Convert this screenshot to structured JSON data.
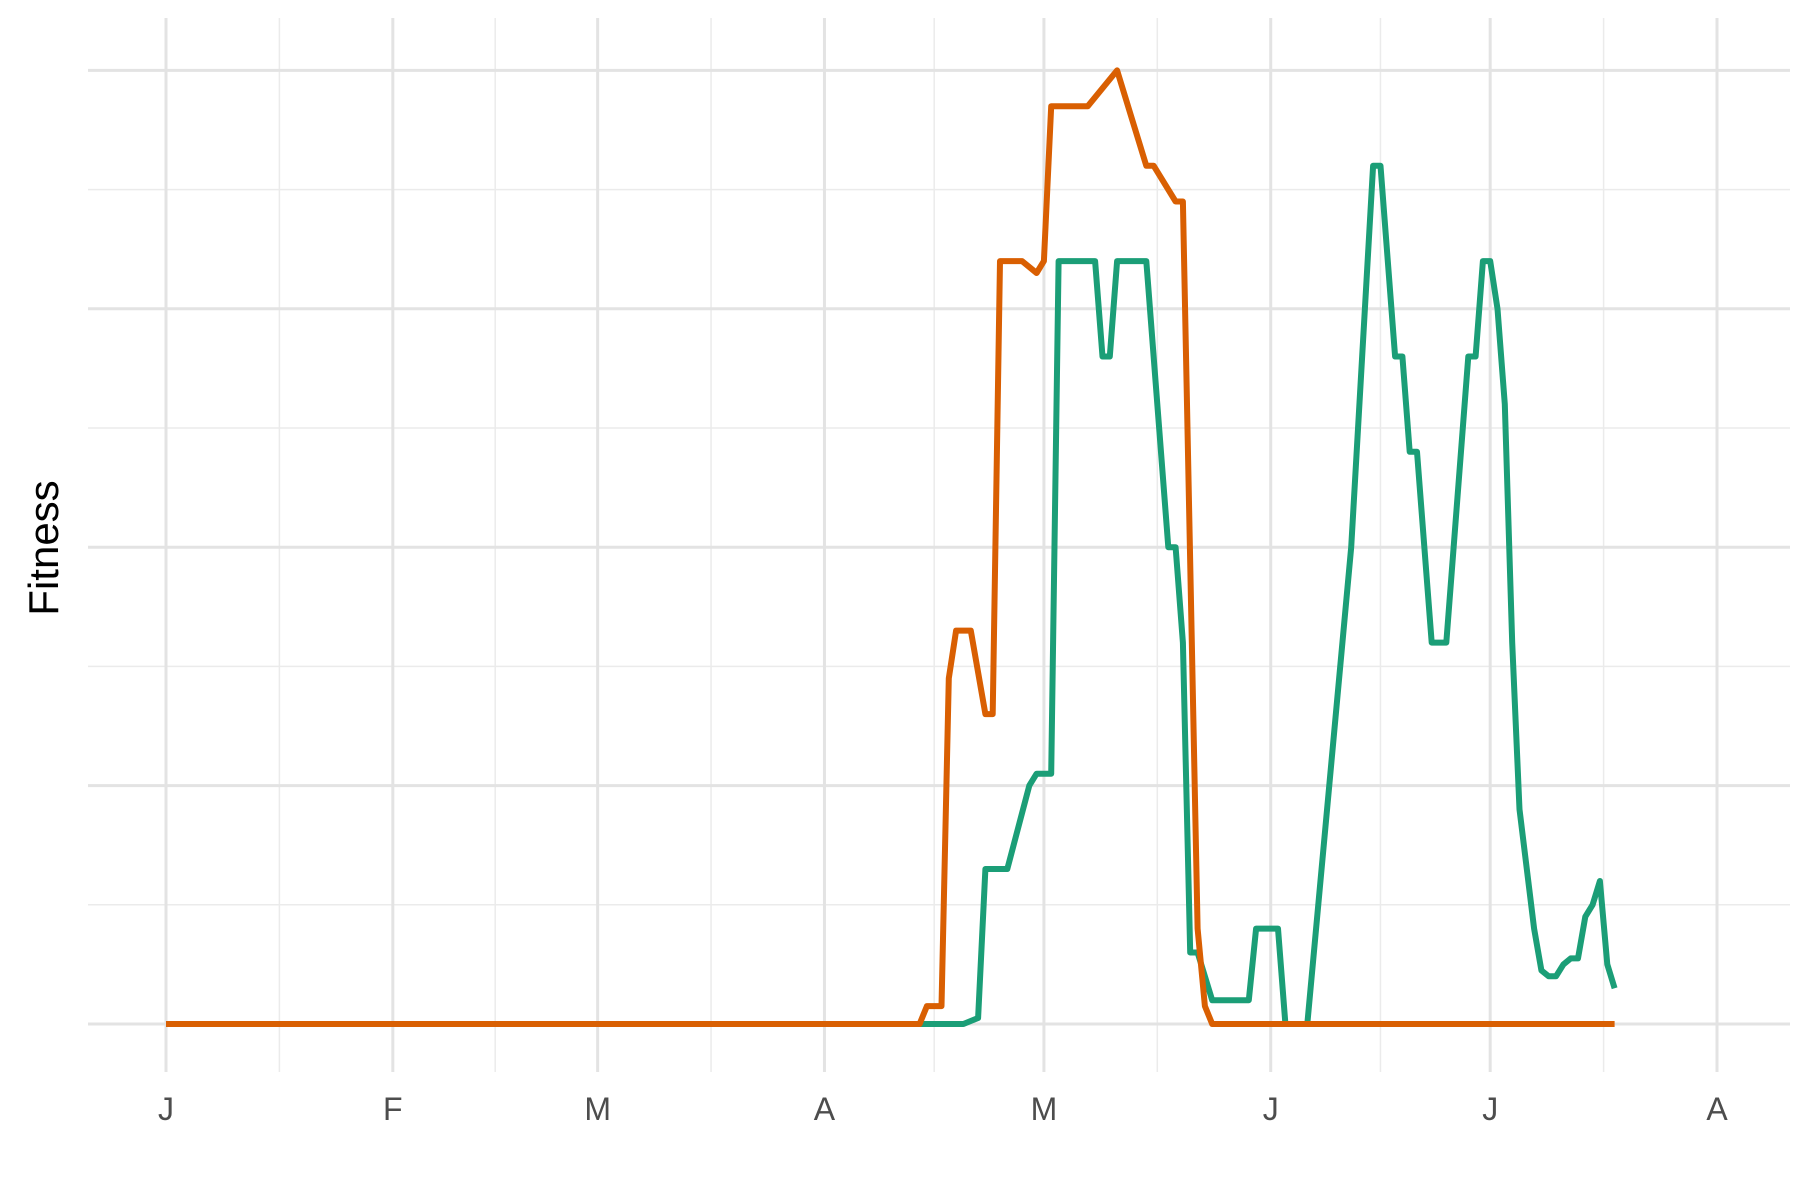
{
  "chart_data": {
    "type": "line",
    "title": "",
    "xlabel": "",
    "ylabel": "Fitness",
    "x_ticks": [
      {
        "label": "J",
        "day": 1
      },
      {
        "label": "F",
        "day": 32
      },
      {
        "label": "M",
        "day": 60
      },
      {
        "label": "A",
        "day": 91
      },
      {
        "label": "M",
        "day": 121
      },
      {
        "label": "J",
        "day": 152
      },
      {
        "label": "J",
        "day": 182
      },
      {
        "label": "A",
        "day": 213
      }
    ],
    "x_minor_ticks": [
      16.5,
      46,
      75.5,
      106,
      136.5,
      167,
      197.5
    ],
    "xlim": [
      -10,
      220
    ],
    "ylim": [
      -0.2,
      8.6
    ],
    "y_major_grid": [
      0,
      2,
      4,
      6,
      8
    ],
    "y_minor_grid": [
      1,
      3,
      5,
      7
    ],
    "grid": true,
    "legend": "none",
    "series": [
      {
        "color": "#1b9e77",
        "points": [
          [
            1,
            0
          ],
          [
            105,
            0
          ],
          [
            110,
            0
          ],
          [
            112,
            0.05
          ],
          [
            113,
            1.3
          ],
          [
            116,
            1.3
          ],
          [
            119,
            2.0
          ],
          [
            120,
            2.1
          ],
          [
            122,
            2.1
          ],
          [
            123,
            6.4
          ],
          [
            128,
            6.4
          ],
          [
            129,
            5.6
          ],
          [
            130,
            5.6
          ],
          [
            131,
            6.4
          ],
          [
            135,
            6.4
          ],
          [
            138,
            4.0
          ],
          [
            139,
            4.0
          ],
          [
            140,
            3.2
          ],
          [
            141,
            0.6
          ],
          [
            142,
            0.6
          ],
          [
            144,
            0.2
          ],
          [
            149,
            0.2
          ],
          [
            150,
            0.8
          ],
          [
            153,
            0.8
          ],
          [
            154,
            0
          ],
          [
            157,
            0
          ],
          [
            163,
            4.0
          ],
          [
            166,
            7.2
          ],
          [
            167,
            7.2
          ],
          [
            169,
            5.6
          ],
          [
            170,
            5.6
          ],
          [
            171,
            4.8
          ],
          [
            172,
            4.8
          ],
          [
            174,
            3.2
          ],
          [
            176,
            3.2
          ],
          [
            179,
            5.6
          ],
          [
            180,
            5.6
          ],
          [
            181,
            6.4
          ],
          [
            182,
            6.4
          ],
          [
            183,
            6.0
          ],
          [
            184,
            5.2
          ],
          [
            185,
            3.2
          ],
          [
            186,
            1.8
          ],
          [
            188,
            0.8
          ],
          [
            189,
            0.45
          ],
          [
            190,
            0.4
          ],
          [
            191,
            0.4
          ],
          [
            192,
            0.5
          ],
          [
            193,
            0.55
          ],
          [
            194,
            0.55
          ],
          [
            195,
            0.9
          ],
          [
            196,
            1.0
          ],
          [
            197,
            1.2
          ],
          [
            198,
            0.5
          ],
          [
            199,
            0.3
          ]
        ]
      },
      {
        "color": "#d95f02",
        "points": [
          [
            1,
            0
          ],
          [
            104,
            0
          ],
          [
            105,
            0.15
          ],
          [
            107,
            0.15
          ],
          [
            108,
            2.9
          ],
          [
            109,
            3.3
          ],
          [
            111,
            3.3
          ],
          [
            113,
            2.6
          ],
          [
            114,
            2.6
          ],
          [
            115,
            6.4
          ],
          [
            118,
            6.4
          ],
          [
            120,
            6.3
          ],
          [
            121,
            6.4
          ],
          [
            122,
            7.7
          ],
          [
            123,
            7.7
          ],
          [
            125,
            7.7
          ],
          [
            126,
            7.7
          ],
          [
            127,
            7.7
          ],
          [
            131,
            8.0
          ],
          [
            133,
            7.6
          ],
          [
            135,
            7.2
          ],
          [
            136,
            7.2
          ],
          [
            139,
            6.9
          ],
          [
            140,
            6.9
          ],
          [
            142,
            0.8
          ],
          [
            143,
            0.15
          ],
          [
            144,
            0
          ],
          [
            150,
            0
          ],
          [
            160,
            0
          ],
          [
            199,
            0
          ]
        ]
      }
    ]
  }
}
